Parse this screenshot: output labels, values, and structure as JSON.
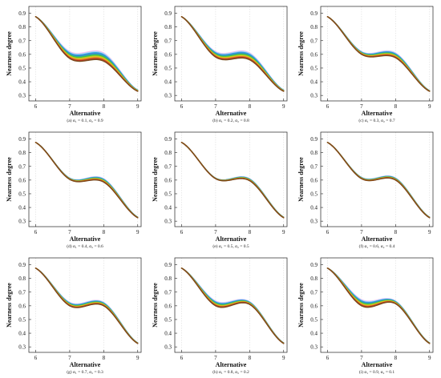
{
  "colors": {
    "curve_colors": [
      "#f0c0f0",
      "#a8d8ff",
      "#3aa7e0",
      "#3d7fd6",
      "#2bb3a0",
      "#3fbf3f",
      "#a7cc24",
      "#e8c020",
      "#e07a1f",
      "#c0392b",
      "#7a4a1a"
    ],
    "grid": "#dcdcdc",
    "axis": "#222222"
  },
  "chart_data": [
    {
      "type": "line",
      "caption": "(a) α₁ = 0.1, α₂ = 0.9",
      "xlabel": "Alternative",
      "ylabel": "Nearness degree",
      "xlim": [
        5.8,
        9.1
      ],
      "ylim": [
        0.26,
        0.95
      ],
      "xticks": [
        6,
        7,
        8,
        9
      ],
      "yticks": [
        0.3,
        0.4,
        0.5,
        0.6,
        0.7,
        0.8,
        0.9
      ],
      "x": [
        6,
        7,
        8,
        9
      ],
      "y_upper": [
        0.875,
        0.62,
        0.61,
        0.34
      ],
      "y_lower": [
        0.875,
        0.57,
        0.55,
        0.33
      ]
    },
    {
      "type": "line",
      "caption": "(b) α₁ = 0.2, α₂ = 0.8",
      "xlabel": "Alternative",
      "ylabel": "Nearness degree",
      "xlim": [
        5.8,
        9.1
      ],
      "ylim": [
        0.26,
        0.95
      ],
      "xticks": [
        6,
        7,
        8,
        9
      ],
      "yticks": [
        0.3,
        0.4,
        0.5,
        0.6,
        0.7,
        0.8,
        0.9
      ],
      "x": [
        6,
        7,
        8,
        9
      ],
      "y_upper": [
        0.875,
        0.62,
        0.61,
        0.34
      ],
      "y_lower": [
        0.875,
        0.58,
        0.56,
        0.33
      ]
    },
    {
      "type": "line",
      "caption": "(c) α₁ = 0.3, α₂ = 0.7",
      "xlabel": "Alternative",
      "ylabel": "Nearness degree",
      "xlim": [
        5.8,
        9.1
      ],
      "ylim": [
        0.26,
        0.95
      ],
      "xticks": [
        6,
        7,
        8,
        9
      ],
      "yticks": [
        0.3,
        0.4,
        0.5,
        0.6,
        0.7,
        0.8,
        0.9
      ],
      "x": [
        6,
        7,
        8,
        9
      ],
      "y_upper": [
        0.875,
        0.62,
        0.61,
        0.335
      ],
      "y_lower": [
        0.875,
        0.6,
        0.575,
        0.33
      ]
    },
    {
      "type": "line",
      "caption": "(d) α₁ = 0.4, α₂ = 0.6",
      "xlabel": "Alternative",
      "ylabel": "Nearness degree",
      "xlim": [
        5.8,
        9.1
      ],
      "ylim": [
        0.26,
        0.95
      ],
      "xticks": [
        6,
        7,
        8,
        9
      ],
      "yticks": [
        0.3,
        0.4,
        0.5,
        0.6,
        0.7,
        0.8,
        0.9
      ],
      "x": [
        6,
        7,
        8,
        9
      ],
      "y_upper": [
        0.875,
        0.615,
        0.61,
        0.33
      ],
      "y_lower": [
        0.875,
        0.605,
        0.585,
        0.325
      ]
    },
    {
      "type": "line",
      "caption": "(e) α₁ = 0.5, α₂ = 0.5",
      "xlabel": "Alternative",
      "ylabel": "Nearness degree",
      "xlim": [
        5.8,
        9.1
      ],
      "ylim": [
        0.26,
        0.95
      ],
      "xticks": [
        6,
        7,
        8,
        9
      ],
      "yticks": [
        0.3,
        0.4,
        0.5,
        0.6,
        0.7,
        0.8,
        0.9
      ],
      "x": [
        6,
        7,
        8,
        9
      ],
      "y_upper": [
        0.875,
        0.615,
        0.61,
        0.33
      ],
      "y_lower": [
        0.875,
        0.61,
        0.595,
        0.325
      ]
    },
    {
      "type": "line",
      "caption": "(f) α₁ = 0.6, α₂ = 0.4",
      "xlabel": "Alternative",
      "ylabel": "Nearness degree",
      "xlim": [
        5.8,
        9.1
      ],
      "ylim": [
        0.26,
        0.95
      ],
      "xticks": [
        6,
        7,
        8,
        9
      ],
      "yticks": [
        0.3,
        0.4,
        0.5,
        0.6,
        0.7,
        0.8,
        0.9
      ],
      "x": [
        6,
        7,
        8,
        9
      ],
      "y_upper": [
        0.875,
        0.62,
        0.615,
        0.33
      ],
      "y_lower": [
        0.875,
        0.61,
        0.6,
        0.325
      ]
    },
    {
      "type": "line",
      "caption": "(g) α₁ = 0.7, α₂ = 0.3",
      "xlabel": "Alternative",
      "ylabel": "Nearness degree",
      "xlim": [
        5.8,
        9.1
      ],
      "ylim": [
        0.26,
        0.95
      ],
      "xticks": [
        6,
        7,
        8,
        9
      ],
      "yticks": [
        0.3,
        0.4,
        0.5,
        0.6,
        0.7,
        0.8,
        0.9
      ],
      "x": [
        6,
        7,
        8,
        9
      ],
      "y_upper": [
        0.875,
        0.625,
        0.625,
        0.33
      ],
      "y_lower": [
        0.875,
        0.6,
        0.6,
        0.325
      ]
    },
    {
      "type": "line",
      "caption": "(h) α₁ = 0.8, α₂ = 0.2",
      "xlabel": "Alternative",
      "ylabel": "Nearness degree",
      "xlim": [
        5.8,
        9.1
      ],
      "ylim": [
        0.26,
        0.95
      ],
      "xticks": [
        6,
        7,
        8,
        9
      ],
      "yticks": [
        0.3,
        0.4,
        0.5,
        0.6,
        0.7,
        0.8,
        0.9
      ],
      "x": [
        6,
        7,
        8,
        9
      ],
      "y_upper": [
        0.875,
        0.635,
        0.63,
        0.33
      ],
      "y_lower": [
        0.875,
        0.6,
        0.61,
        0.325
      ]
    },
    {
      "type": "line",
      "caption": "(i) α₁ = 0.9, α₂ = 0.1",
      "xlabel": "Alternative",
      "ylabel": "Nearness degree",
      "xlim": [
        5.8,
        9.1
      ],
      "ylim": [
        0.26,
        0.95
      ],
      "xticks": [
        6,
        7,
        8,
        9
      ],
      "yticks": [
        0.3,
        0.4,
        0.5,
        0.6,
        0.7,
        0.8,
        0.9
      ],
      "x": [
        6,
        7,
        8,
        9
      ],
      "y_upper": [
        0.875,
        0.645,
        0.635,
        0.33
      ],
      "y_lower": [
        0.875,
        0.6,
        0.615,
        0.325
      ]
    }
  ]
}
